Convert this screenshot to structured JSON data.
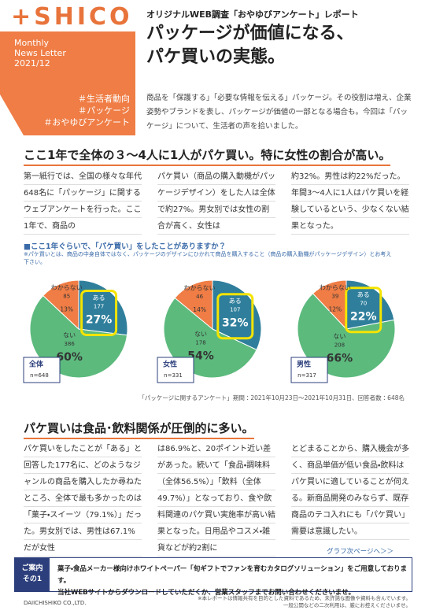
{
  "header": {
    "logo": "+SHICO",
    "meta": [
      "Monthly",
      "News Letter",
      "2021/12"
    ],
    "tags": [
      "＃生活者動向",
      "＃パッケージ",
      "＃おやゆびアンケート"
    ],
    "subtitle": "オリジナルWEB調査「おやゆびアンケート」レポート",
    "title": [
      "パッケージが価値になる、",
      "パケ買いの実態。"
    ],
    "intro": "商品を「保護する」「必要な情報を伝える」パッケージ。その役割は増え、企業姿勢やブランドを表し、パッケージが価値の一部となる場合も。今回は「パッケージ」について、生活者の声を拾いました。"
  },
  "section1": {
    "heading": "ここ1年で全体の３〜4人に1人がパケ買い。特に女性の割合が高い。",
    "columns": [
      "第一紙行では、全国の様々な年代648名に「パッケージ」に関するウェブアンケートを行った。ここ1年で、商品の",
      "パケ買い（商品の購入動機がパッケージデザイン）をした人は全体で約27%。男女別では女性の割合が高く、女性は",
      "約32%。男性は約22%だった。年間3〜4人に1人はパケ買いを経験しているという、少なくない結果となった。"
    ]
  },
  "charts": {
    "title": "■ここ1年ぐらいで、「パケ買い」をしたことがありますか？",
    "note": "※パケ買いとは、商品の中身自体ではなく、パッケージのデザインにひかれて商品を購入すること（商品の購入動機がパッケージデザイン）とお考え下さい。",
    "source": "「パッケージに関するアンケート」期間：2021年10月23日〜2021年10月31日、回答者数：648名"
  },
  "chart_data": [
    {
      "type": "pie",
      "title": "全体",
      "n": "n=648",
      "categories": [
        "ある",
        "ない",
        "わからない"
      ],
      "colors": [
        "#2f7f9c",
        "#5cba7d",
        "#ef7d45"
      ],
      "counts": [
        177,
        386,
        85
      ],
      "values": [
        27,
        60,
        13
      ],
      "value_labels": [
        "27%",
        "60%",
        "13%"
      ]
    },
    {
      "type": "pie",
      "title": "女性",
      "n": "n=331",
      "categories": [
        "ある",
        "ない",
        "わからない"
      ],
      "colors": [
        "#2f7f9c",
        "#5cba7d",
        "#ef7d45"
      ],
      "counts": [
        107,
        178,
        46
      ],
      "values": [
        32,
        54,
        14
      ],
      "value_labels": [
        "32%",
        "54%",
        "14%"
      ]
    },
    {
      "type": "pie",
      "title": "男性",
      "n": "n=317",
      "categories": [
        "ある",
        "ない",
        "わからない"
      ],
      "colors": [
        "#2f7f9c",
        "#5cba7d",
        "#ef7d45"
      ],
      "counts": [
        70,
        208,
        39
      ],
      "values": [
        22,
        66,
        12
      ],
      "value_labels": [
        "22%",
        "66%",
        "12%"
      ]
    }
  ],
  "section2": {
    "heading": "パケ買いは食品･飲料関係が圧倒的に多い。",
    "columns": [
      "パケ買いをしたことが「ある」と回答した177名に、どのようなジャンルの商品を購入したか尋ねたところ、全体で最も多かったのは「菓子・スイーツ（79.1%）」だった。男女別では、男性は67.1%だが女性",
      "は86.9%と、20ポイント近い差があった。続いて「食品・調味料（全体56.5%）」「飲料（全体49.7%）」となっており、食や飲料関連のパケ買い実施率が高い結果となった。日用品やコスメ・雑貨などが約2割に",
      "とどまることから、購入機会が多く、商品単価が低い食品・飲料はパケ買いに適していることが伺える。新商品開発のみならず、既存商品のテコ入れにも「パケ買い」需要は意識したい。"
    ],
    "link": "グラフ次ページへ＞＞"
  },
  "footer": {
    "label": [
      "ご案内",
      "その1"
    ],
    "lines": [
      "菓子・食品メーカー様向けホワイトペーパー「旬ギフトでファンを育むカタログソリューション」をご用意しております。",
      "当社WEBサイトからダウンロードしていただくか、営業スタッフまでお問い合わせくださいませ。"
    ],
    "company": "DAIICHISHIKO CO.,LTD.",
    "notes": [
      "※本レポートは情報共有を目的とした資料であるため、未許諾な画像や資料も含んでいます。",
      "一般公開などの二次利用は、厳にお控えくださいませ。"
    ]
  }
}
